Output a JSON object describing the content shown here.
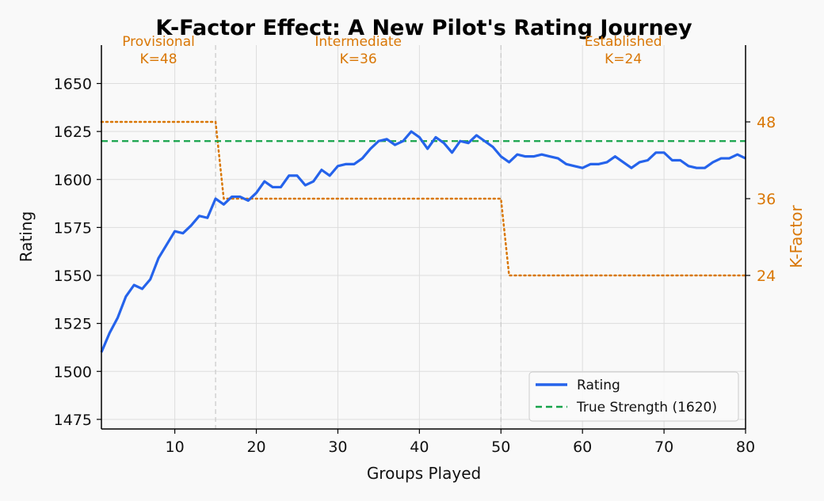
{
  "chart_data": {
    "type": "line",
    "title": "K-Factor Effect: A New Pilot's Rating Journey",
    "xlabel": "Groups Played",
    "ylabel": "Rating",
    "y2label": "K-Factor",
    "xlim": [
      1,
      80
    ],
    "ylim": [
      1470,
      1670
    ],
    "y2lim": [
      0,
      60
    ],
    "x_ticks": [
      10,
      20,
      30,
      40,
      50,
      60,
      70,
      80
    ],
    "y_ticks": [
      1475,
      1500,
      1525,
      1550,
      1575,
      1600,
      1625,
      1650
    ],
    "y2_ticks": [
      24,
      36,
      48
    ],
    "grid": true,
    "legend_position": "lower-right",
    "colors": {
      "rating": "#2563eb",
      "true_strength": "#16a34a",
      "k_factor": "#d97706"
    },
    "phases": [
      {
        "name": "Provisional",
        "k_label": "K=48",
        "start": 1,
        "end": 15
      },
      {
        "name": "Intermediate",
        "k_label": "K=36",
        "start": 15,
        "end": 50
      },
      {
        "name": "Established",
        "k_label": "K=24",
        "start": 50,
        "end": 80
      }
    ],
    "phase_boundaries": [
      15,
      50
    ],
    "series": [
      {
        "name": "Rating",
        "x": [
          1,
          2,
          3,
          4,
          5,
          6,
          7,
          8,
          9,
          10,
          11,
          12,
          13,
          14,
          15,
          16,
          17,
          18,
          19,
          20,
          21,
          22,
          23,
          24,
          25,
          26,
          27,
          28,
          29,
          30,
          31,
          32,
          33,
          34,
          35,
          36,
          37,
          38,
          39,
          40,
          41,
          42,
          43,
          44,
          45,
          46,
          47,
          48,
          49,
          50,
          51,
          52,
          53,
          54,
          55,
          56,
          57,
          58,
          59,
          60,
          61,
          62,
          63,
          64,
          65,
          66,
          67,
          68,
          69,
          70,
          71,
          72,
          73,
          74,
          75,
          76,
          77,
          78,
          79,
          80
        ],
        "values": [
          1510,
          1520,
          1528,
          1539,
          1545,
          1543,
          1548,
          1559,
          1566,
          1573,
          1572,
          1576,
          1581,
          1580,
          1590,
          1587,
          1591,
          1591,
          1589,
          1593,
          1599,
          1596,
          1596,
          1602,
          1602,
          1597,
          1599,
          1605,
          1602,
          1607,
          1608,
          1608,
          1611,
          1616,
          1620,
          1621,
          1618,
          1620,
          1625,
          1622,
          1616,
          1622,
          1619,
          1614,
          1620,
          1619,
          1623,
          1620,
          1617,
          1612,
          1609,
          1613,
          1612,
          1612,
          1613,
          1612,
          1611,
          1608,
          1607,
          1606,
          1608,
          1608,
          1609,
          1612,
          1609,
          1606,
          1609,
          1610,
          1614,
          1614,
          1610,
          1610,
          1607,
          1606,
          1606,
          1609,
          1611,
          1611,
          1613,
          1611
        ]
      },
      {
        "name": "True Strength (1620)",
        "value": 1620
      },
      {
        "name": "K-Factor",
        "x": [
          1,
          15,
          16,
          50,
          51,
          80
        ],
        "values": [
          48,
          48,
          36,
          36,
          24,
          24
        ]
      }
    ]
  }
}
